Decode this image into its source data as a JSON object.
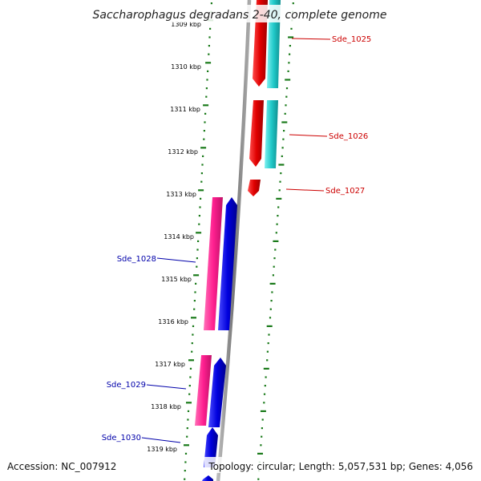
{
  "title": "Saccharophagus degradans 2-40, complete genome",
  "footer": {
    "accession": "Accession: NC_007912",
    "topology": "Topology: circular; Length: 5,057,531 bp; Genes: 4,056"
  },
  "ticks": [
    {
      "label": "1309 kbp"
    },
    {
      "label": "1310 kbp"
    },
    {
      "label": "1311 kbp"
    },
    {
      "label": "1312 kbp"
    },
    {
      "label": "1313 kbp"
    },
    {
      "label": "1314 kbp"
    },
    {
      "label": "1315 kbp"
    },
    {
      "label": "1316 kbp"
    },
    {
      "label": "1317 kbp"
    },
    {
      "label": "1318 kbp"
    },
    {
      "label": "1319 kbp"
    }
  ],
  "genes": [
    {
      "name": "Sde_1025",
      "strand": "plus"
    },
    {
      "name": "Sde_1026",
      "strand": "plus"
    },
    {
      "name": "Sde_1027",
      "strand": "plus"
    },
    {
      "name": "Sde_1028",
      "strand": "minus"
    },
    {
      "name": "Sde_1029",
      "strand": "minus"
    },
    {
      "name": "Sde_1030",
      "strand": "minus"
    }
  ],
  "colors": {
    "plus_gene": "#e00000",
    "plus_cds": "#20c8c8",
    "minus_gene": "#0000dd",
    "minus_cds": "#ff2090",
    "backbone": "#888888",
    "ticks": "#1a7a1a",
    "label_red": "#cc0000",
    "label_blue": "#0000aa"
  }
}
